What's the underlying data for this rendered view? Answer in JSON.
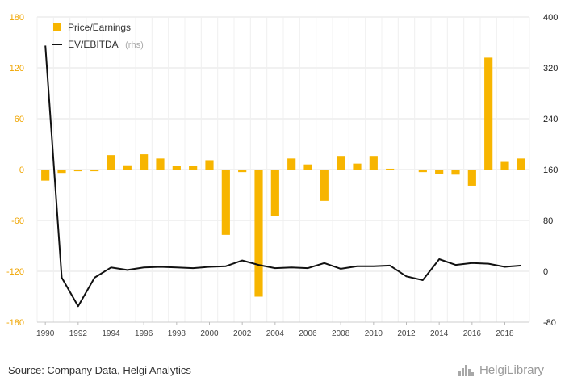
{
  "chart_data": {
    "type": "bar",
    "x": [
      1990,
      1991,
      1992,
      1993,
      1994,
      1995,
      1996,
      1997,
      1998,
      1999,
      2000,
      2001,
      2002,
      2003,
      2004,
      2005,
      2006,
      2007,
      2008,
      2009,
      2010,
      2011,
      2012,
      2013,
      2014,
      2015,
      2016,
      2017,
      2018,
      2019
    ],
    "x_tick_labels": [
      "1990",
      "1992",
      "1994",
      "1996",
      "1998",
      "2000",
      "2002",
      "2004",
      "2006",
      "2008",
      "2010",
      "2012",
      "2014",
      "2016",
      "2018"
    ],
    "y_left_ticks": [
      "180",
      "120",
      "60",
      "0",
      "-60",
      "-120",
      "-180"
    ],
    "y_right_ticks": [
      "400",
      "320",
      "240",
      "160",
      "80",
      "0",
      "-80"
    ],
    "ylim_left": [
      -180,
      180
    ],
    "ylim_right": [
      -80,
      400
    ],
    "series": [
      {
        "name": "Price/Earnings",
        "kind": "bar",
        "axis": "left",
        "color": "#f7b500",
        "values": [
          -13,
          -4,
          -2,
          -2,
          17,
          5,
          18,
          13,
          4,
          4,
          11,
          -77,
          -3,
          -150,
          -55,
          13,
          6,
          -37,
          16,
          7,
          16,
          1,
          0,
          -3,
          -5,
          -6,
          -19,
          132,
          9,
          13
        ]
      },
      {
        "name": "EV/EBITDA",
        "name_suffix": "(rhs)",
        "kind": "line",
        "axis": "right",
        "color": "#111111",
        "values": [
          355,
          -10,
          -55,
          -10,
          6,
          2,
          6,
          7,
          6,
          5,
          7,
          8,
          17,
          10,
          5,
          6,
          5,
          13,
          4,
          8,
          8,
          9,
          -8,
          -14,
          19,
          10,
          13,
          12,
          7,
          9
        ]
      }
    ],
    "legend_position": "top-left",
    "grid": true
  },
  "footer": {
    "source": "Source: Company Data, Helgi Analytics",
    "logo_text": "HelgiLibrary"
  }
}
